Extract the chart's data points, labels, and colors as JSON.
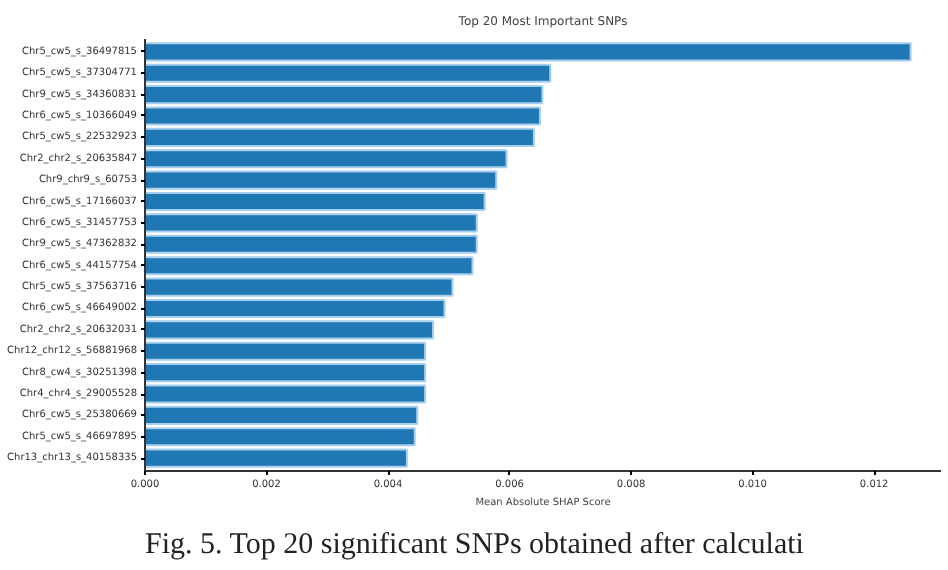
{
  "chart_data": {
    "type": "bar",
    "orientation": "horizontal",
    "title": "Top 20 Most Important SNPs",
    "xlabel": "Mean Absolute SHAP Score",
    "categories": [
      "Chr5_cw5_s_36497815",
      "Chr5_cw5_s_37304771",
      "Chr9_cw5_s_34360831",
      "Chr6_cw5_s_10366049",
      "Chr5_cw5_s_22532923",
      "Chr2_chr2_s_20635847",
      "Chr9_chr9_s_60753",
      "Chr6_cw5_s_17166037",
      "Chr6_cw5_s_31457753",
      "Chr9_cw5_s_47362832",
      "Chr6_cw5_s_44157754",
      "Chr5_cw5_s_37563716",
      "Chr6_cw5_s_46649002",
      "Chr2_chr2_s_20632031",
      "Chr12_chr12_s_56881968",
      "Chr8_cw4_s_30251398",
      "Chr4_chr4_s_29005528",
      "Chr6_cw5_s_25380669",
      "Chr5_cw5_s_46697895",
      "Chr13_chr13_s_40158335"
    ],
    "values": [
      0.0126,
      0.00667,
      0.00654,
      0.0065,
      0.0064,
      0.00595,
      0.00578,
      0.00559,
      0.00546,
      0.00546,
      0.00539,
      0.00506,
      0.00493,
      0.00474,
      0.00461,
      0.00461,
      0.00461,
      0.00448,
      0.00444,
      0.00431
    ],
    "color": "#1f77b4",
    "xlim": [
      0,
      0.0131
    ],
    "xticks": [
      {
        "value": 0,
        "label": "0.000"
      },
      {
        "value": 0.002,
        "label": "0.002"
      },
      {
        "value": 0.004,
        "label": "0.004"
      },
      {
        "value": 0.006,
        "label": "0.006"
      },
      {
        "value": 0.008,
        "label": "0.008"
      },
      {
        "value": 0.01,
        "label": "0.010"
      },
      {
        "value": 0.012,
        "label": "0.012"
      }
    ],
    "grid": false,
    "annotations": [
      "Fig. 5. Top 20 significant SNPs obtained after calculati"
    ]
  }
}
